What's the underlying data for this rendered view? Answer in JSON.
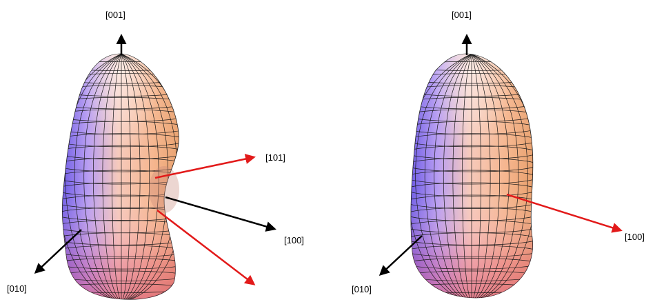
{
  "left_figure": {
    "labels": {
      "top": "[001]",
      "upper_right": "[101]",
      "right": "[100]",
      "bottom_left": "[010]"
    }
  },
  "right_figure": {
    "labels": {
      "top": "[001]",
      "right": "[100]",
      "bottom_left": "[010]"
    }
  },
  "colors": {
    "black_arrow": "#000000",
    "red_arrow": "#e21a1a",
    "surface_blue": "#7f6cf0",
    "surface_peach": "#f4b390",
    "surface_pink": "#ef8aa4",
    "mesh": "#1a1a1a"
  }
}
